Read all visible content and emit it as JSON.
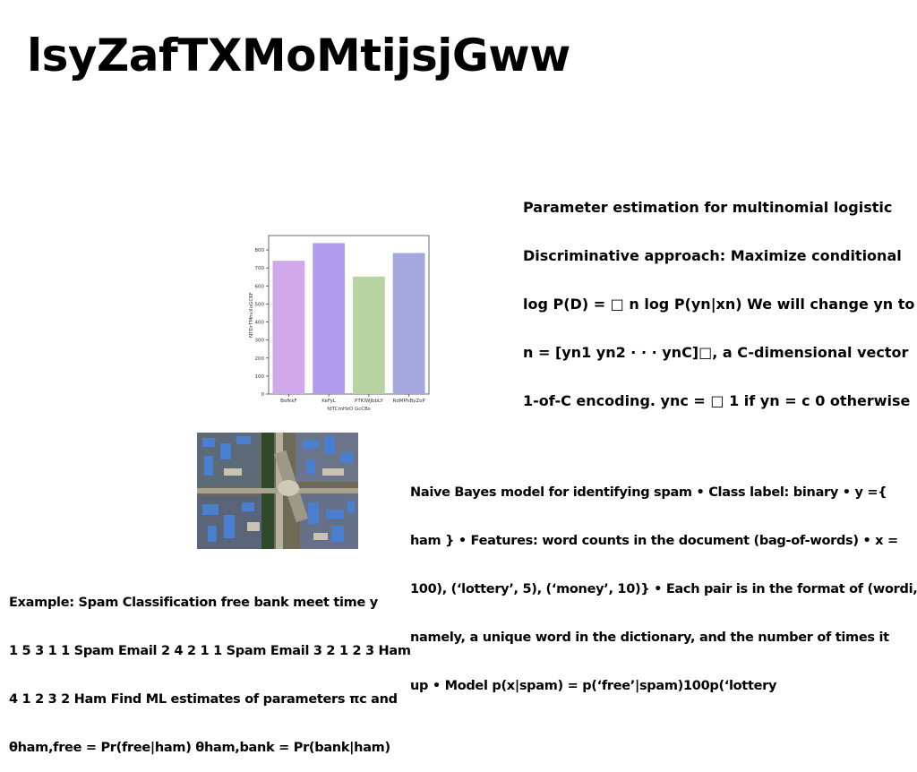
{
  "slide": {
    "title": "lsyZafTXMoMtijsjGww",
    "param_block": [
      "Parameter estimation for multinomial logistic",
      "Discriminative approach: Maximize conditional",
      "log P(D) = □ n log P(yn|xn) We will change yn to",
      "n = [yn1 yn2 · · · ynC]□, a C-dimensional vector",
      "1-of-C encoding. ync = □ 1 if yn = c 0 otherwise"
    ],
    "bayes_block": [
      "Naive Bayes model for identifying spam • Class label: binary • y ={",
      "ham } • Features: word counts in the document (bag-of-words) • x =",
      "100), (‘lottery’, 5), (‘money’, 10)} • Each pair is in the format of (wordi,",
      "namely, a unique word in the dictionary, and the number of times it",
      "up • Model p(x|spam) = p(‘free’|spam)100p(‘lottery"
    ],
    "example_block": [
      "Example: Spam Classification free bank meet time y",
      "1 5 3 1 1 Spam Email 2 4 2 1 1 Spam Email 3 2 1 2 3 Ham",
      "4 1 2 3 2 Ham Find ML estimates of parameters πc and",
      "θham,free = Pr(free|ham) θham,bank = Pr(bank|ham)"
    ]
  },
  "chart_data": {
    "type": "bar",
    "categories": [
      "BofkkF",
      "KeFyL",
      "PTKIWJbbLY",
      "RdMPhByZoP"
    ],
    "values": [
      740,
      838,
      652,
      783
    ],
    "colors": [
      "#d1a8ea",
      "#b19cee",
      "#b8d4a2",
      "#a6a8dd"
    ],
    "xlabel": "fdTCmHzO GcCBs",
    "ylabel": "NTDrTMhvXuGCKF",
    "yticks": [
      0,
      100,
      200,
      300,
      400,
      500,
      600,
      700,
      800
    ],
    "ylim": [
      0,
      880
    ],
    "grid": false
  },
  "photo": {
    "kind": "aerial-photo"
  }
}
